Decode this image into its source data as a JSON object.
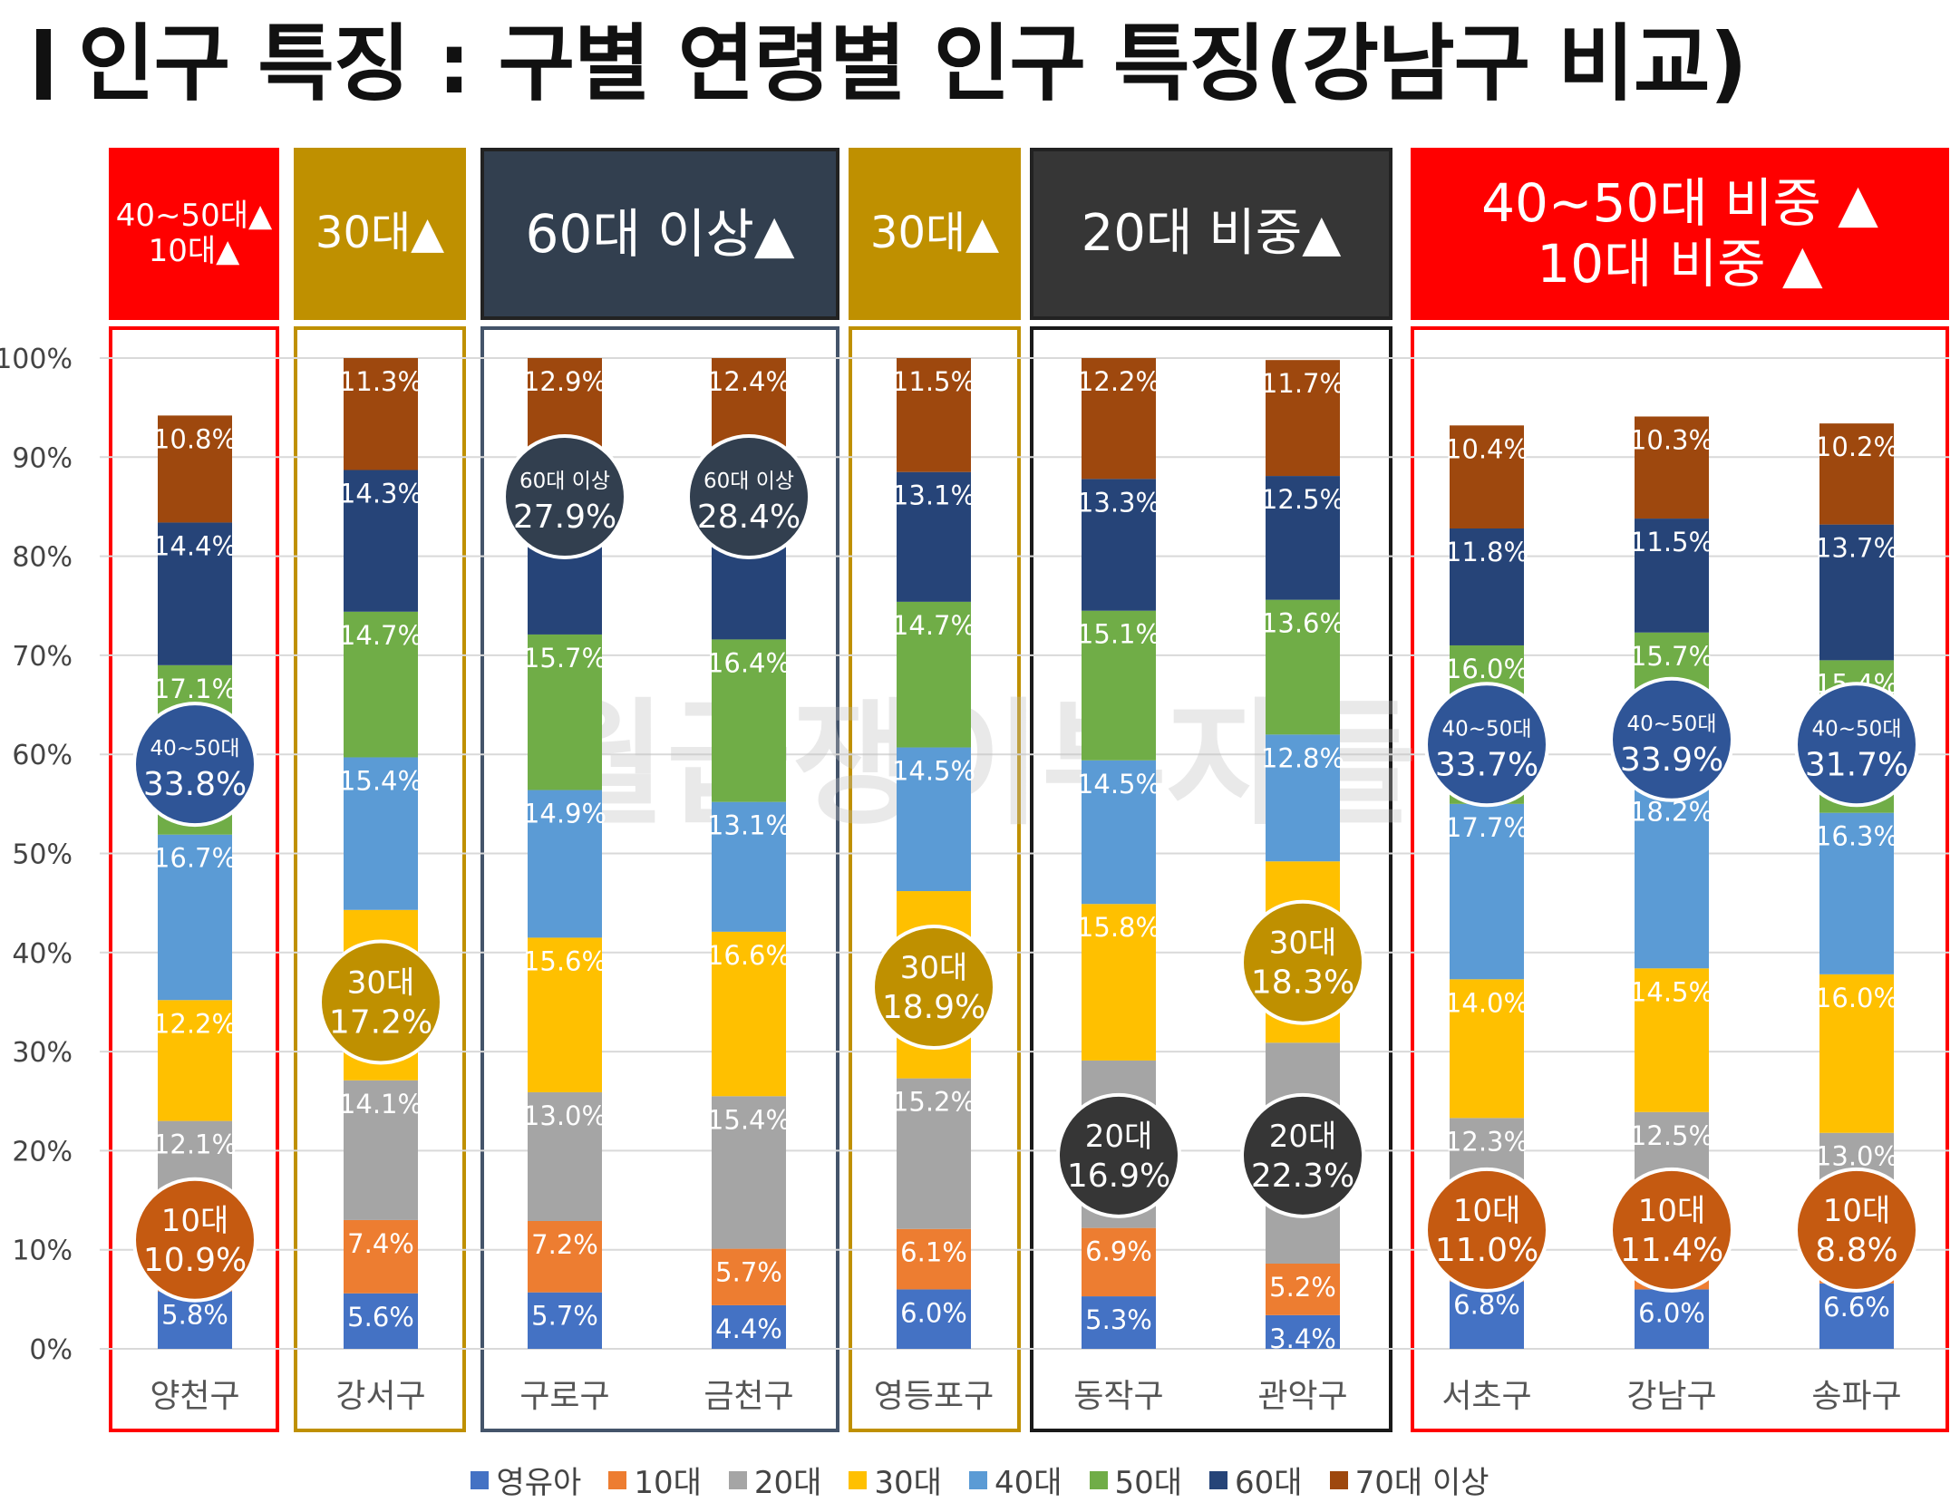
{
  "title": "인구 특징 : 구별 연령별 인구 특징(강남구 비교)",
  "watermark": "월급쟁이부자들",
  "colors": {
    "영유아": "#4472C4",
    "10대": "#ED7D31",
    "20대": "#A5A5A5",
    "30대": "#FFC000",
    "40대": "#5B9BD5",
    "50대": "#70AD47",
    "60대": "#264478",
    "70대 이상": "#9E480E",
    "red": "#FF0000",
    "gold": "#BF9000",
    "navy": "#323F4F",
    "dark": "#363636"
  },
  "headers": [
    {
      "text": "40~50대▲\n10대▲",
      "color": "#FF0000"
    },
    {
      "text": "30대▲",
      "color": "#BF9000"
    },
    {
      "text": "60대 이상▲",
      "color": "#323F4F"
    },
    {
      "text": "30대▲",
      "color": "#BF9000"
    },
    {
      "text": "20대 비중▲",
      "color": "#363636"
    },
    {
      "text": "40~50대 비중 ▲\n10대 비중 ▲",
      "color": "#FF0000"
    }
  ],
  "chart_data": {
    "type": "bar",
    "stacked": true,
    "categories": [
      "양천구",
      "강서구",
      "구로구",
      "금천구",
      "영등포구",
      "동작구",
      "관악구",
      "서초구",
      "강남구",
      "송파구"
    ],
    "y_ticks": [
      "0%",
      "10%",
      "20%",
      "30%",
      "40%",
      "50%",
      "60%",
      "70%",
      "80%",
      "90%",
      "100%"
    ],
    "ylim": [
      0,
      100
    ],
    "series": [
      {
        "name": "영유아",
        "values": [
          5.8,
          5.6,
          5.7,
          4.4,
          6.0,
          5.3,
          3.4,
          6.8,
          6.0,
          6.6
        ],
        "labels": [
          "5.8%",
          "5.6%",
          "5.7%",
          "4.4%",
          "6.0%",
          "5.3%",
          "3.4%",
          "6.8%",
          "6.0%",
          "6.6%"
        ]
      },
      {
        "name": "10대",
        "values": [
          5.1,
          7.4,
          7.2,
          5.7,
          6.1,
          6.9,
          5.2,
          4.2,
          5.4,
          2.2
        ],
        "labels": [
          "",
          "7.4%",
          "7.2%",
          "5.7%",
          "6.1%",
          "6.9%",
          "5.2%",
          "",
          "",
          ""
        ]
      },
      {
        "name": "20대",
        "values": [
          12.1,
          14.1,
          13.0,
          15.4,
          15.2,
          16.9,
          22.3,
          12.3,
          12.5,
          13.0
        ],
        "labels": [
          "12.1%",
          "14.1%",
          "13.0%",
          "15.4%",
          "15.2%",
          "",
          "",
          "12.3%",
          "12.5%",
          "13.0%"
        ]
      },
      {
        "name": "30대",
        "values": [
          12.2,
          17.2,
          15.6,
          16.6,
          18.9,
          15.8,
          18.3,
          14.0,
          14.5,
          16.0
        ],
        "labels": [
          "12.2%",
          "",
          "15.6%",
          "16.6%",
          "",
          "15.8%",
          "",
          "14.0%",
          "14.5%",
          "16.0%"
        ]
      },
      {
        "name": "40대",
        "values": [
          16.7,
          15.4,
          14.9,
          13.1,
          14.5,
          14.5,
          12.8,
          17.7,
          18.2,
          16.3
        ],
        "labels": [
          "16.7%",
          "15.4%",
          "14.9%",
          "13.1%",
          "14.5%",
          "14.5%",
          "12.8%",
          "17.7%",
          "18.2%",
          "16.3%"
        ]
      },
      {
        "name": "50대",
        "values": [
          17.1,
          14.7,
          15.7,
          16.4,
          14.7,
          15.1,
          13.6,
          16.0,
          15.7,
          15.4
        ],
        "labels": [
          "17.1%",
          "14.7%",
          "15.7%",
          "16.4%",
          "14.7%",
          "15.1%",
          "13.6%",
          "16.0%",
          "15.7%",
          "15.4%"
        ]
      },
      {
        "name": "60대",
        "values": [
          14.4,
          14.3,
          15.0,
          16.0,
          13.1,
          13.3,
          12.5,
          11.8,
          11.5,
          13.7
        ],
        "labels": [
          "14.4%",
          "14.3%",
          "15.0%",
          "16.0%",
          "13.1%",
          "13.3%",
          "12.5%",
          "11.8%",
          "11.5%",
          "13.7%"
        ]
      },
      {
        "name": "70대 이상",
        "values": [
          10.8,
          11.3,
          12.9,
          12.4,
          11.5,
          12.2,
          11.7,
          10.4,
          10.3,
          10.2
        ],
        "labels": [
          "10.8%",
          "11.3%",
          "12.9%",
          "12.4%",
          "11.5%",
          "12.2%",
          "11.7%",
          "10.4%",
          "10.3%",
          "10.2%"
        ]
      }
    ],
    "callouts": [
      {
        "cat": 0,
        "y": 59,
        "line1": "40~50대",
        "line2": "33.8%",
        "color": "#2F5597"
      },
      {
        "cat": 0,
        "y": 11,
        "line1": "10대",
        "line2": "10.9%",
        "color": "#C55A11"
      },
      {
        "cat": 1,
        "y": 35,
        "line1": "30대",
        "line2": "17.2%",
        "color": "#BF9000"
      },
      {
        "cat": 2,
        "y": 86,
        "line1": "60대 이상",
        "line2": "27.9%",
        "color": "#323F4F"
      },
      {
        "cat": 3,
        "y": 86,
        "line1": "60대 이상",
        "line2": "28.4%",
        "color": "#323F4F"
      },
      {
        "cat": 4,
        "y": 36.5,
        "line1": "30대",
        "line2": "18.9%",
        "color": "#BF9000"
      },
      {
        "cat": 5,
        "y": 19.5,
        "line1": "20대",
        "line2": "16.9%",
        "color": "#363636"
      },
      {
        "cat": 6,
        "y": 39,
        "line1": "30대",
        "line2": "18.3%",
        "color": "#BF9000"
      },
      {
        "cat": 6,
        "y": 19.5,
        "line1": "20대",
        "line2": "22.3%",
        "color": "#363636"
      },
      {
        "cat": 7,
        "y": 61,
        "line1": "40~50대",
        "line2": "33.7%",
        "color": "#2F5597"
      },
      {
        "cat": 7,
        "y": 12,
        "line1": "10대",
        "line2": "11.0%",
        "color": "#C55A11"
      },
      {
        "cat": 8,
        "y": 61.5,
        "line1": "40~50대",
        "line2": "33.9%",
        "color": "#2F5597"
      },
      {
        "cat": 8,
        "y": 12,
        "line1": "10대",
        "line2": "11.4%",
        "color": "#C55A11"
      },
      {
        "cat": 9,
        "y": 61,
        "line1": "40~50대",
        "line2": "31.7%",
        "color": "#2F5597"
      },
      {
        "cat": 9,
        "y": 12,
        "line1": "10대",
        "line2": "8.8%",
        "color": "#C55A11"
      }
    ]
  },
  "legend": [
    "영유아",
    "10대",
    "20대",
    "30대",
    "40대",
    "50대",
    "60대",
    "70대 이상"
  ]
}
